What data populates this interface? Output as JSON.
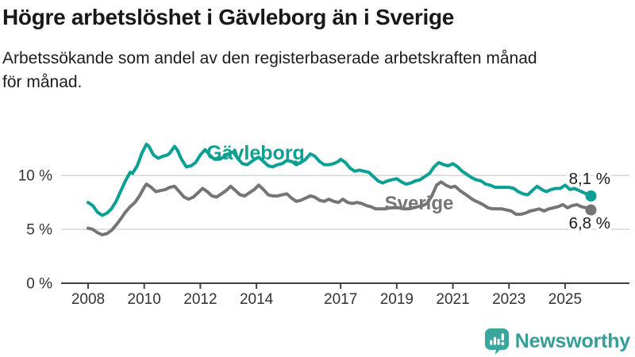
{
  "page": {
    "title": "Högre arbetslöshet i Gävleborg än i Sverige",
    "subtitle_lines": [
      "Arbetssökande som andel av den registerbaserade arbetskraften månad",
      "för månad."
    ]
  },
  "footer": {
    "brand": "Newsworthy",
    "logo_icon": "speech-bubble-bar-chart-icon",
    "brand_color": "#3aa79c"
  },
  "colors": {
    "accent_teal": "#0ba093",
    "line_gray": "#757575",
    "gridline": "#d9d9d9",
    "axis": "#424242",
    "axis_text": "#333333",
    "value_text": "#1a1a1a"
  },
  "chart_data": {
    "type": "line",
    "title": "Högre arbetslöshet i Gävleborg än i Sverige",
    "subtitle": "Arbetssökande som andel av den registerbaserade arbetskraften månad för månad.",
    "unit": "%",
    "grid": true,
    "legend_position": "inline-labels",
    "x_axis": {
      "tick_years": [
        2008,
        2010,
        2012,
        2014,
        2017,
        2019,
        2021,
        2023,
        2025
      ],
      "tick_labels": [
        "2008",
        "2010",
        "2012",
        "2014",
        "2017",
        "2019",
        "2021",
        "2023",
        "2025"
      ],
      "range": [
        2007.4,
        2026.4
      ]
    },
    "y_axis": {
      "tick_values": [
        0,
        5,
        10
      ],
      "tick_labels": [
        "0 %",
        "5 %",
        "10 %"
      ],
      "range": [
        0,
        14
      ]
    },
    "series": [
      {
        "name": "Gävleborg",
        "color": "#0ba093",
        "end_value": 8.1,
        "end_label": "8,1 %",
        "points": [
          [
            2008.0,
            7.5
          ],
          [
            2008.17,
            7.2
          ],
          [
            2008.33,
            6.6
          ],
          [
            2008.5,
            6.3
          ],
          [
            2008.67,
            6.5
          ],
          [
            2008.83,
            6.9
          ],
          [
            2009.0,
            7.6
          ],
          [
            2009.17,
            8.6
          ],
          [
            2009.33,
            9.5
          ],
          [
            2009.5,
            10.3
          ],
          [
            2009.58,
            10.2
          ],
          [
            2009.75,
            10.9
          ],
          [
            2009.92,
            12.1
          ],
          [
            2010.08,
            12.9
          ],
          [
            2010.17,
            12.7
          ],
          [
            2010.33,
            11.9
          ],
          [
            2010.5,
            11.6
          ],
          [
            2010.67,
            11.8
          ],
          [
            2010.83,
            11.9
          ],
          [
            2010.92,
            12.1
          ],
          [
            2011.08,
            12.7
          ],
          [
            2011.17,
            12.4
          ],
          [
            2011.33,
            11.5
          ],
          [
            2011.5,
            10.8
          ],
          [
            2011.67,
            10.9
          ],
          [
            2011.83,
            11.2
          ],
          [
            2012.0,
            11.9
          ],
          [
            2012.17,
            12.4
          ],
          [
            2012.33,
            11.9
          ],
          [
            2012.5,
            11.5
          ],
          [
            2012.67,
            11.5
          ],
          [
            2012.83,
            11.7
          ],
          [
            2013.0,
            12.0
          ],
          [
            2013.17,
            12.2
          ],
          [
            2013.33,
            11.6
          ],
          [
            2013.5,
            11.1
          ],
          [
            2013.67,
            11.0
          ],
          [
            2013.83,
            11.3
          ],
          [
            2014.0,
            11.6
          ],
          [
            2014.08,
            11.7
          ],
          [
            2014.25,
            11.3
          ],
          [
            2014.42,
            10.9
          ],
          [
            2014.58,
            10.8
          ],
          [
            2014.75,
            11.0
          ],
          [
            2014.92,
            11.1
          ],
          [
            2015.08,
            11.4
          ],
          [
            2015.25,
            11.3
          ],
          [
            2015.42,
            11.0
          ],
          [
            2015.58,
            11.2
          ],
          [
            2015.75,
            11.5
          ],
          [
            2015.92,
            12.0
          ],
          [
            2016.08,
            11.8
          ],
          [
            2016.25,
            11.3
          ],
          [
            2016.42,
            11.0
          ],
          [
            2016.58,
            11.0
          ],
          [
            2016.75,
            11.1
          ],
          [
            2016.92,
            11.3
          ],
          [
            2017.0,
            11.5
          ],
          [
            2017.17,
            11.2
          ],
          [
            2017.33,
            10.7
          ],
          [
            2017.5,
            10.4
          ],
          [
            2017.67,
            10.5
          ],
          [
            2017.83,
            10.4
          ],
          [
            2018.0,
            10.3
          ],
          [
            2018.17,
            9.9
          ],
          [
            2018.33,
            9.5
          ],
          [
            2018.5,
            9.3
          ],
          [
            2018.67,
            9.5
          ],
          [
            2018.83,
            9.6
          ],
          [
            2019.0,
            9.7
          ],
          [
            2019.17,
            9.4
          ],
          [
            2019.33,
            9.2
          ],
          [
            2019.5,
            9.3
          ],
          [
            2019.67,
            9.5
          ],
          [
            2019.83,
            9.6
          ],
          [
            2020.0,
            9.9
          ],
          [
            2020.17,
            10.2
          ],
          [
            2020.33,
            10.8
          ],
          [
            2020.5,
            11.2
          ],
          [
            2020.67,
            11.0
          ],
          [
            2020.83,
            10.9
          ],
          [
            2021.0,
            11.1
          ],
          [
            2021.17,
            10.8
          ],
          [
            2021.33,
            10.4
          ],
          [
            2021.5,
            10.1
          ],
          [
            2021.67,
            9.8
          ],
          [
            2021.83,
            9.6
          ],
          [
            2022.0,
            9.5
          ],
          [
            2022.17,
            9.2
          ],
          [
            2022.33,
            9.1
          ],
          [
            2022.5,
            8.9
          ],
          [
            2022.67,
            8.9
          ],
          [
            2022.83,
            8.9
          ],
          [
            2023.0,
            8.9
          ],
          [
            2023.17,
            8.8
          ],
          [
            2023.33,
            8.5
          ],
          [
            2023.5,
            8.3
          ],
          [
            2023.67,
            8.2
          ],
          [
            2023.83,
            8.6
          ],
          [
            2024.0,
            9.0
          ],
          [
            2024.17,
            8.7
          ],
          [
            2024.33,
            8.5
          ],
          [
            2024.5,
            8.7
          ],
          [
            2024.67,
            8.8
          ],
          [
            2024.83,
            8.8
          ],
          [
            2025.0,
            9.1
          ],
          [
            2025.17,
            8.7
          ],
          [
            2025.33,
            8.8
          ],
          [
            2025.5,
            8.6
          ],
          [
            2025.67,
            8.4
          ],
          [
            2025.83,
            8.2
          ],
          [
            2025.92,
            8.1
          ]
        ]
      },
      {
        "name": "Sverige",
        "color": "#757575",
        "end_value": 6.8,
        "end_label": "6,8 %",
        "points": [
          [
            2008.0,
            5.1
          ],
          [
            2008.17,
            5.0
          ],
          [
            2008.33,
            4.7
          ],
          [
            2008.5,
            4.5
          ],
          [
            2008.67,
            4.6
          ],
          [
            2008.83,
            4.9
          ],
          [
            2009.0,
            5.4
          ],
          [
            2009.17,
            6.0
          ],
          [
            2009.33,
            6.6
          ],
          [
            2009.5,
            7.1
          ],
          [
            2009.67,
            7.5
          ],
          [
            2009.83,
            8.1
          ],
          [
            2010.0,
            8.9
          ],
          [
            2010.08,
            9.2
          ],
          [
            2010.25,
            8.9
          ],
          [
            2010.42,
            8.5
          ],
          [
            2010.58,
            8.6
          ],
          [
            2010.75,
            8.7
          ],
          [
            2010.92,
            8.9
          ],
          [
            2011.08,
            9.0
          ],
          [
            2011.25,
            8.5
          ],
          [
            2011.42,
            8.0
          ],
          [
            2011.58,
            7.8
          ],
          [
            2011.75,
            8.0
          ],
          [
            2011.92,
            8.4
          ],
          [
            2012.08,
            8.8
          ],
          [
            2012.25,
            8.5
          ],
          [
            2012.42,
            8.1
          ],
          [
            2012.58,
            8.0
          ],
          [
            2012.75,
            8.3
          ],
          [
            2012.92,
            8.6
          ],
          [
            2013.08,
            9.0
          ],
          [
            2013.25,
            8.6
          ],
          [
            2013.42,
            8.2
          ],
          [
            2013.58,
            8.1
          ],
          [
            2013.75,
            8.4
          ],
          [
            2013.92,
            8.7
          ],
          [
            2014.08,
            9.1
          ],
          [
            2014.25,
            8.7
          ],
          [
            2014.42,
            8.2
          ],
          [
            2014.58,
            8.1
          ],
          [
            2014.75,
            8.1
          ],
          [
            2014.92,
            8.2
          ],
          [
            2015.08,
            8.3
          ],
          [
            2015.25,
            7.9
          ],
          [
            2015.42,
            7.6
          ],
          [
            2015.58,
            7.7
          ],
          [
            2015.75,
            7.9
          ],
          [
            2015.92,
            8.1
          ],
          [
            2016.08,
            8.0
          ],
          [
            2016.25,
            7.7
          ],
          [
            2016.42,
            7.6
          ],
          [
            2016.58,
            7.8
          ],
          [
            2016.75,
            7.6
          ],
          [
            2016.92,
            7.5
          ],
          [
            2017.08,
            7.8
          ],
          [
            2017.25,
            7.5
          ],
          [
            2017.42,
            7.4
          ],
          [
            2017.58,
            7.5
          ],
          [
            2017.75,
            7.4
          ],
          [
            2017.92,
            7.2
          ],
          [
            2018.08,
            7.1
          ],
          [
            2018.25,
            6.9
          ],
          [
            2018.42,
            6.9
          ],
          [
            2018.58,
            6.9
          ],
          [
            2018.75,
            7.0
          ],
          [
            2018.92,
            7.0
          ],
          [
            2019.08,
            7.0
          ],
          [
            2019.25,
            6.9
          ],
          [
            2019.42,
            6.9
          ],
          [
            2019.58,
            7.0
          ],
          [
            2019.75,
            7.1
          ],
          [
            2019.92,
            7.2
          ],
          [
            2020.08,
            7.4
          ],
          [
            2020.25,
            8.1
          ],
          [
            2020.42,
            9.1
          ],
          [
            2020.58,
            9.4
          ],
          [
            2020.75,
            9.1
          ],
          [
            2020.92,
            8.9
          ],
          [
            2021.08,
            9.0
          ],
          [
            2021.25,
            8.6
          ],
          [
            2021.42,
            8.3
          ],
          [
            2021.58,
            8.0
          ],
          [
            2021.75,
            7.7
          ],
          [
            2021.92,
            7.5
          ],
          [
            2022.08,
            7.3
          ],
          [
            2022.25,
            7.0
          ],
          [
            2022.42,
            6.9
          ],
          [
            2022.58,
            6.9
          ],
          [
            2022.75,
            6.9
          ],
          [
            2022.92,
            6.8
          ],
          [
            2023.08,
            6.7
          ],
          [
            2023.25,
            6.4
          ],
          [
            2023.42,
            6.4
          ],
          [
            2023.58,
            6.5
          ],
          [
            2023.75,
            6.7
          ],
          [
            2023.92,
            6.8
          ],
          [
            2024.08,
            6.9
          ],
          [
            2024.25,
            6.7
          ],
          [
            2024.42,
            6.9
          ],
          [
            2024.58,
            7.0
          ],
          [
            2024.75,
            7.1
          ],
          [
            2024.92,
            7.3
          ],
          [
            2025.08,
            7.0
          ],
          [
            2025.25,
            7.2
          ],
          [
            2025.42,
            7.3
          ],
          [
            2025.58,
            7.1
          ],
          [
            2025.75,
            7.0
          ],
          [
            2025.92,
            6.8
          ]
        ]
      }
    ]
  }
}
